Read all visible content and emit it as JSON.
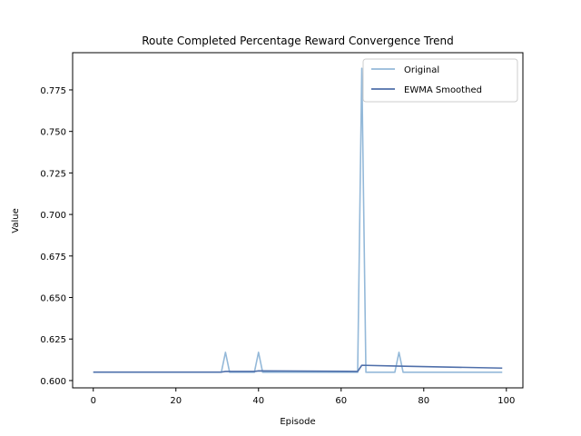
{
  "chart_data": {
    "type": "line",
    "title": "Route Completed Percentage Reward Convergence Trend",
    "xlabel": "Episode",
    "ylabel": "Value",
    "xlim": [
      -5,
      104
    ],
    "ylim": [
      0.5956,
      0.7974
    ],
    "xticks": [
      0,
      20,
      40,
      60,
      80,
      100
    ],
    "xtick_labels": [
      "0",
      "20",
      "40",
      "60",
      "80",
      "100"
    ],
    "yticks": [
      0.6,
      0.625,
      0.65,
      0.675,
      0.7,
      0.725,
      0.75,
      0.775
    ],
    "ytick_labels": [
      "0.600",
      "0.625",
      "0.650",
      "0.675",
      "0.700",
      "0.725",
      "0.750",
      "0.775"
    ],
    "legend_position": "top-right",
    "grid": false,
    "series": [
      {
        "name": "Original",
        "color": "#94b9d9",
        "x": [
          0,
          31,
          32,
          33,
          39,
          40,
          41,
          64,
          65,
          66,
          73,
          74,
          75,
          99
        ],
        "y": [
          0.605,
          0.605,
          0.617,
          0.605,
          0.605,
          0.617,
          0.605,
          0.605,
          0.788,
          0.605,
          0.605,
          0.617,
          0.605,
          0.605
        ]
      },
      {
        "name": "EWMA Smoothed",
        "color": "#4f6faa",
        "x": [
          0,
          31,
          32,
          39,
          40,
          64,
          65,
          74,
          99
        ],
        "y": [
          0.6051,
          0.6051,
          0.6055,
          0.6055,
          0.6058,
          0.6055,
          0.6092,
          0.6087,
          0.6075
        ]
      }
    ]
  }
}
